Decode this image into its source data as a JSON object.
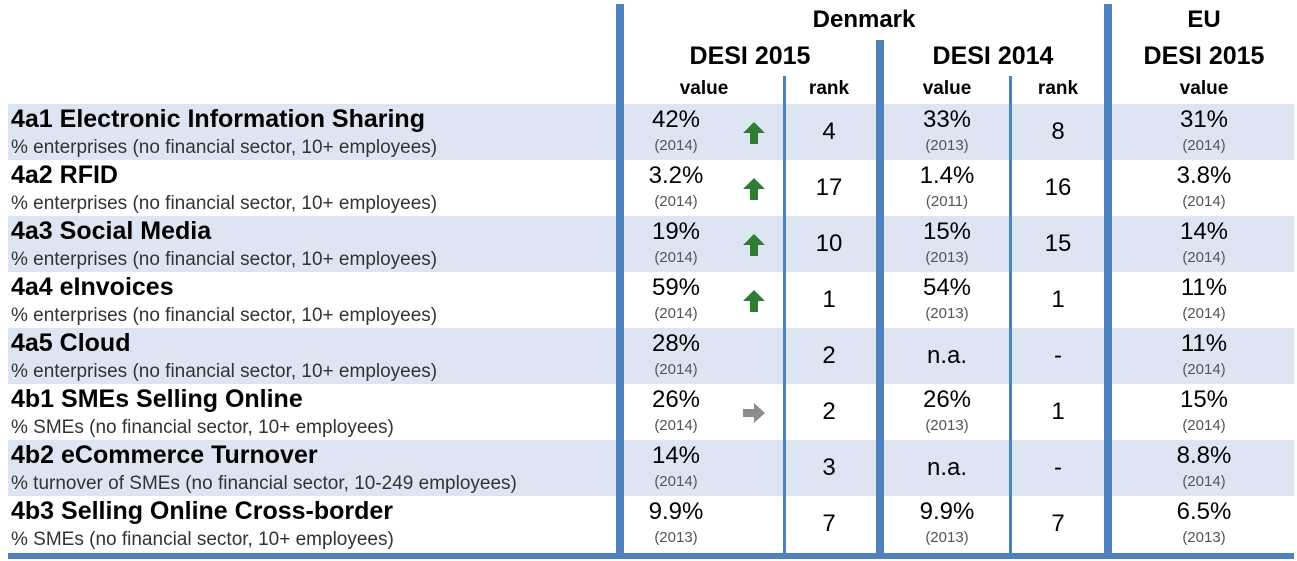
{
  "header": {
    "country": "Denmark",
    "eu": "EU",
    "desi_dk_current": "DESI 2015",
    "desi_dk_prev": "DESI 2014",
    "desi_eu": "DESI 2015",
    "col_value": "value",
    "col_rank": "rank"
  },
  "colors": {
    "accent": "#4f81bd",
    "row_shade": "#dce5f1",
    "arrow_up": "#2e7d32",
    "arrow_flat": "#8c8c8c"
  },
  "rows": [
    {
      "title": "4a1 Electronic Information Sharing",
      "subtitle": "% enterprises (no financial sector, 10+ employees)",
      "dk2015_value": "42%",
      "dk2015_year": "(2014)",
      "trend": "up",
      "dk2015_rank": "4",
      "dk2014_value": "33%",
      "dk2014_year": "(2013)",
      "dk2014_rank": "8",
      "eu_value": "31%",
      "eu_year": "(2014)"
    },
    {
      "title": "4a2 RFID",
      "subtitle": "% enterprises (no financial sector, 10+ employees)",
      "dk2015_value": "3.2%",
      "dk2015_year": "(2014)",
      "trend": "up",
      "dk2015_rank": "17",
      "dk2014_value": "1.4%",
      "dk2014_year": "(2011)",
      "dk2014_rank": "16",
      "eu_value": "3.8%",
      "eu_year": "(2014)"
    },
    {
      "title": "4a3 Social Media",
      "subtitle": "% enterprises (no financial sector, 10+ employees)",
      "dk2015_value": "19%",
      "dk2015_year": "(2014)",
      "trend": "up",
      "dk2015_rank": "10",
      "dk2014_value": "15%",
      "dk2014_year": "(2013)",
      "dk2014_rank": "15",
      "eu_value": "14%",
      "eu_year": "(2014)"
    },
    {
      "title": "4a4 eInvoices",
      "subtitle": "% enterprises (no financial sector, 10+ employees)",
      "dk2015_value": "59%",
      "dk2015_year": "(2014)",
      "trend": "up",
      "dk2015_rank": "1",
      "dk2014_value": "54%",
      "dk2014_year": "(2013)",
      "dk2014_rank": "1",
      "eu_value": "11%",
      "eu_year": "(2014)"
    },
    {
      "title": "4a5 Cloud",
      "subtitle": "% enterprises (no financial sector, 10+ employees)",
      "dk2015_value": "28%",
      "dk2015_year": "(2014)",
      "trend": "none",
      "dk2015_rank": "2",
      "dk2014_value": "n.a.",
      "dk2014_year": "",
      "dk2014_rank": "-",
      "eu_value": "11%",
      "eu_year": "(2014)"
    },
    {
      "title": "4b1 SMEs Selling Online",
      "subtitle": "% SMEs (no financial sector, 10+ employees)",
      "dk2015_value": "26%",
      "dk2015_year": "(2014)",
      "trend": "flat",
      "dk2015_rank": "2",
      "dk2014_value": "26%",
      "dk2014_year": "(2013)",
      "dk2014_rank": "1",
      "eu_value": "15%",
      "eu_year": "(2014)"
    },
    {
      "title": "4b2 eCommerce Turnover",
      "subtitle": "% turnover of SMEs (no financial sector, 10-249 employees)",
      "dk2015_value": "14%",
      "dk2015_year": "(2014)",
      "trend": "none",
      "dk2015_rank": "3",
      "dk2014_value": "n.a.",
      "dk2014_year": "",
      "dk2014_rank": "-",
      "eu_value": "8.8%",
      "eu_year": "(2014)"
    },
    {
      "title": "4b3 Selling Online Cross-border",
      "subtitle": "% SMEs (no financial sector, 10+ employees)",
      "dk2015_value": "9.9%",
      "dk2015_year": "(2013)",
      "trend": "none",
      "dk2015_rank": "7",
      "dk2014_value": "9.9%",
      "dk2014_year": "(2013)",
      "dk2014_rank": "7",
      "eu_value": "6.5%",
      "eu_year": "(2013)"
    }
  ]
}
